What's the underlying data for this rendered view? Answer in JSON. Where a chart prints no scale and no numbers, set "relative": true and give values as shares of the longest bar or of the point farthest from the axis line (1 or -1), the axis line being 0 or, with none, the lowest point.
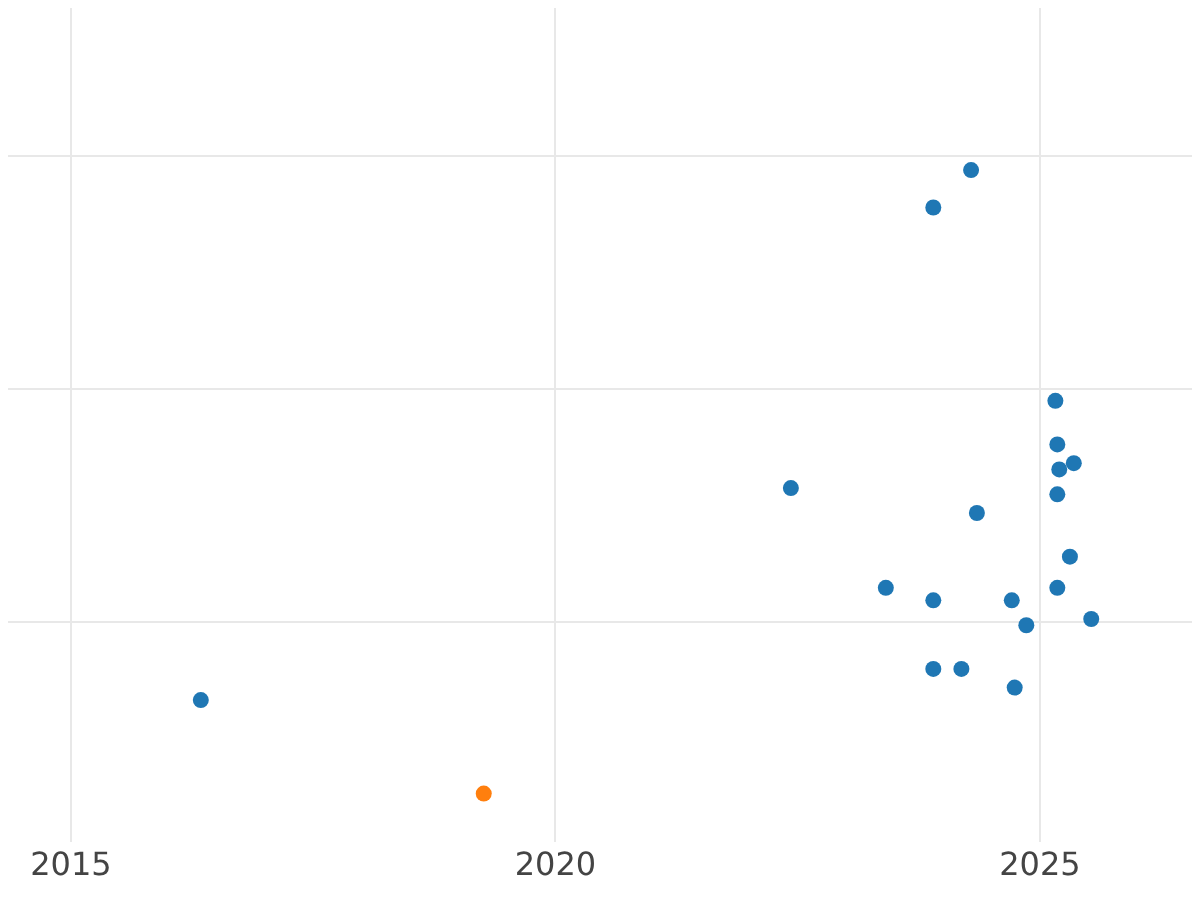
{
  "chart_data": {
    "type": "scatter",
    "relative": true,
    "grid": true,
    "legend": false,
    "marker": "circle",
    "xlim": [
      2014.35,
      2026.57
    ],
    "xticks": [
      2015,
      2020,
      2025
    ],
    "series": [
      {
        "color": "#1f77b4",
        "x": [
          2024.29,
          2023.9,
          2025.16,
          2025.18,
          2025.2,
          2025.35,
          2025.18,
          2022.43,
          2024.35,
          2025.31,
          2023.41,
          2023.9,
          2024.71,
          2025.18,
          2024.86,
          2025.53,
          2023.9,
          2024.19,
          2024.74,
          2016.34
        ],
        "values": [
          1.0,
          0.94,
          0.63,
          0.56,
          0.52,
          0.53,
          0.48,
          0.49,
          0.45,
          0.38,
          0.33,
          0.31,
          0.31,
          0.33,
          0.27,
          0.28,
          0.2,
          0.2,
          0.17,
          0.15
        ]
      },
      {
        "color": "#ff7f0e",
        "x": [
          2019.26
        ],
        "values": [
          0
        ]
      }
    ]
  }
}
